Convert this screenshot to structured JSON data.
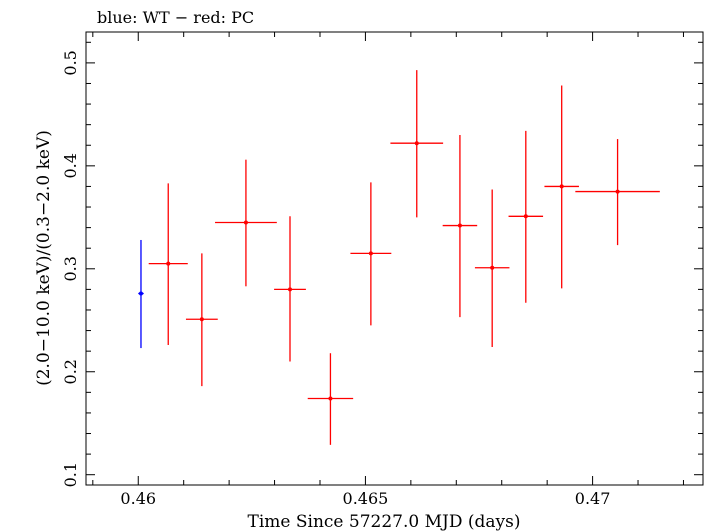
{
  "chart_data": {
    "type": "scatter",
    "title": "blue: WT − red: PC",
    "xlabel": "Time Since 57227.0 MJD (days)",
    "ylabel": "(2.0−10.0 keV)/(0.3−2.0 keV)",
    "xlim": [
      0.45885,
      0.47243
    ],
    "ylim": [
      0.09,
      0.53
    ],
    "x_ticks": [
      {
        "value": 0.46,
        "label": "0.46"
      },
      {
        "value": 0.465,
        "label": "0.465"
      },
      {
        "value": 0.47,
        "label": "0.47"
      }
    ],
    "y_ticks": [
      {
        "value": 0.1,
        "label": "0.1"
      },
      {
        "value": 0.2,
        "label": "0.2"
      },
      {
        "value": 0.3,
        "label": "0.3"
      },
      {
        "value": 0.4,
        "label": "0.4"
      },
      {
        "value": 0.5,
        "label": "0.5"
      }
    ],
    "series": [
      {
        "name": "WT",
        "color": "#0000ff",
        "points": [
          {
            "x": 0.46006,
            "y": 0.276,
            "xerr": 6e-05,
            "yerr_low": 0.053,
            "yerr_high": 0.052
          }
        ]
      },
      {
        "name": "PC",
        "color": "#ff0000",
        "points": [
          {
            "x": 0.46066,
            "y": 0.305,
            "xerr": 0.00043,
            "yerr_low": 0.079,
            "yerr_high": 0.078
          },
          {
            "x": 0.4614,
            "y": 0.251,
            "xerr": 0.00035,
            "yerr_low": 0.065,
            "yerr_high": 0.064
          },
          {
            "x": 0.46237,
            "y": 0.345,
            "xerr": 0.00068,
            "yerr_low": 0.062,
            "yerr_high": 0.061
          },
          {
            "x": 0.46334,
            "y": 0.28,
            "xerr": 0.00035,
            "yerr_low": 0.07,
            "yerr_high": 0.071
          },
          {
            "x": 0.46423,
            "y": 0.174,
            "xerr": 0.0005,
            "yerr_low": 0.045,
            "yerr_high": 0.044
          },
          {
            "x": 0.46512,
            "y": 0.315,
            "xerr": 0.00045,
            "yerr_low": 0.07,
            "yerr_high": 0.069
          },
          {
            "x": 0.46613,
            "y": 0.422,
            "xerr": 0.00058,
            "yerr_low": 0.072,
            "yerr_high": 0.071
          },
          {
            "x": 0.46708,
            "y": 0.342,
            "xerr": 0.00038,
            "yerr_low": 0.089,
            "yerr_high": 0.088
          },
          {
            "x": 0.46779,
            "y": 0.301,
            "xerr": 0.00038,
            "yerr_low": 0.077,
            "yerr_high": 0.076
          },
          {
            "x": 0.46853,
            "y": 0.351,
            "xerr": 0.00038,
            "yerr_low": 0.084,
            "yerr_high": 0.083
          },
          {
            "x": 0.46932,
            "y": 0.38,
            "xerr": 0.00038,
            "yerr_low": 0.099,
            "yerr_high": 0.098
          },
          {
            "x": 0.47055,
            "y": 0.375,
            "xerr": 0.00093,
            "yerr_low": 0.052,
            "yerr_high": 0.051
          }
        ]
      }
    ]
  }
}
